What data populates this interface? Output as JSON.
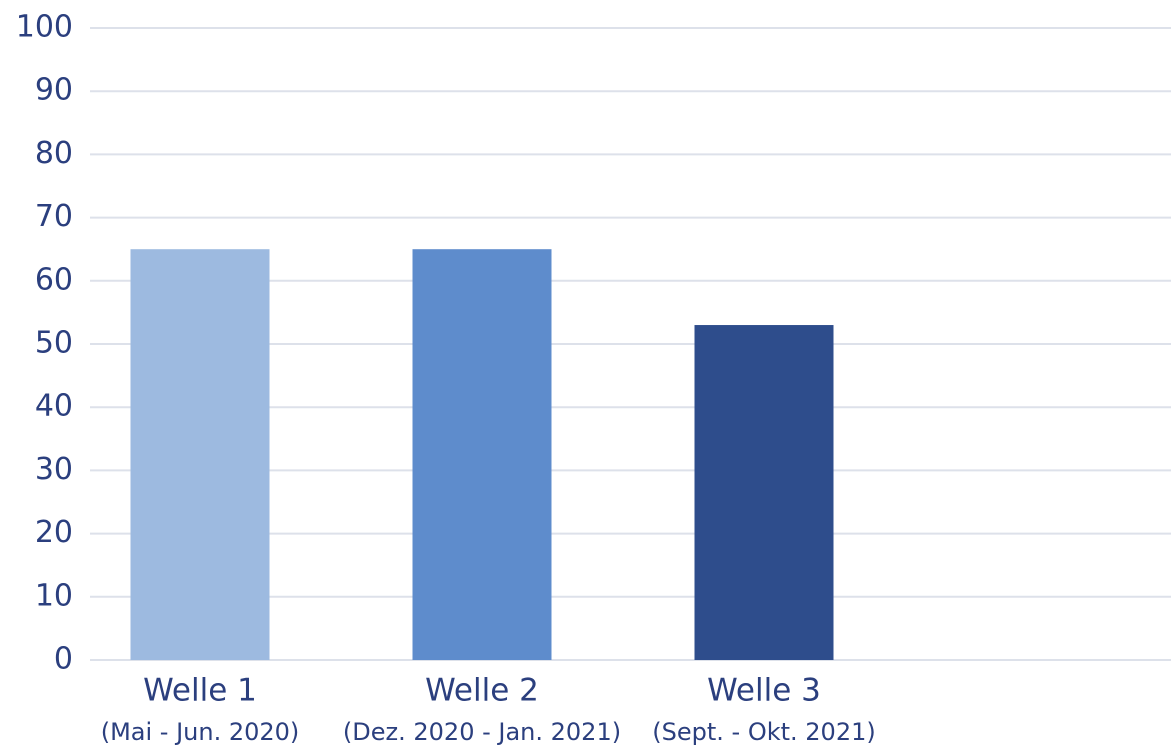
{
  "chart_data": {
    "type": "bar",
    "categories": [
      [
        "Welle 1",
        "(Mai - Jun. 2020)"
      ],
      [
        "Welle 2",
        "(Dez. 2020 - Jan. 2021)"
      ],
      [
        "Welle 3",
        "(Sept. - Okt. 2021)"
      ]
    ],
    "values": [
      65,
      65,
      53
    ],
    "colors": [
      "#9dbae0",
      "#5e8ccc",
      "#2e4d8c"
    ],
    "ylim": [
      0,
      100
    ],
    "yticks": [
      0,
      10,
      20,
      30,
      40,
      50,
      60,
      70,
      80,
      90,
      100
    ],
    "grid": true
  }
}
